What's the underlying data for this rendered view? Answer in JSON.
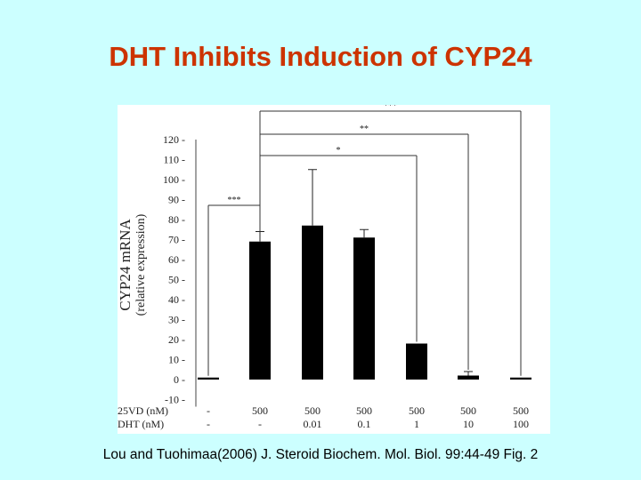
{
  "slide": {
    "title": "DHT Inhibits Induction of CYP24",
    "caption": "Lou and Tuohimaa(2006) J. Steroid Biochem. Mol. Biol. 99:44-49 Fig. 2"
  },
  "chart_data": {
    "type": "bar",
    "ylabel_main": "CYP24 mRNA",
    "ylabel_sub": "(relative expression)",
    "ylim": [
      -10,
      120
    ],
    "yticks": [
      "120 -",
      "110 -",
      "100 -",
      "90 -",
      "80 -",
      "70 -",
      "60 -",
      "50 -",
      "40 -",
      "30 -",
      "20 -",
      "10 -",
      "0 -",
      "-10 -"
    ],
    "ytick_values": [
      120,
      110,
      100,
      90,
      80,
      70,
      60,
      50,
      40,
      30,
      20,
      10,
      0,
      -10
    ],
    "row_labels": [
      "25VD (nM)",
      "DHT (nM)"
    ],
    "categories": [
      {
        "vd": "-",
        "dht": "-"
      },
      {
        "vd": "500",
        "dht": "-"
      },
      {
        "vd": "500",
        "dht": "0.01"
      },
      {
        "vd": "500",
        "dht": "0.1"
      },
      {
        "vd": "500",
        "dht": "1"
      },
      {
        "vd": "500",
        "dht": "10"
      },
      {
        "vd": "500",
        "dht": "100"
      }
    ],
    "values": [
      1,
      69,
      77,
      71,
      18,
      2,
      1
    ],
    "errors": [
      0,
      5,
      28,
      4,
      0,
      2,
      0
    ],
    "significance": [
      {
        "from": 0,
        "to": 1,
        "label": "***"
      },
      {
        "from": 1,
        "to": 4,
        "label": "*"
      },
      {
        "from": 1,
        "to": 5,
        "label": "**"
      },
      {
        "from": 1,
        "to": 6,
        "label": "***"
      }
    ],
    "grid": false,
    "bar_color": "#000000"
  }
}
